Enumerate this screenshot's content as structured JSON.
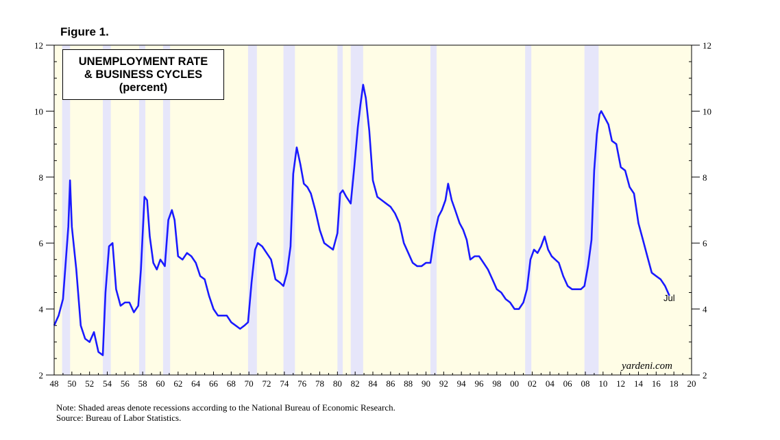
{
  "figure_label": "Figure 1.",
  "watermark": "yardeni.com",
  "notes": {
    "line1": "Note: Shaded areas denote recessions according to the National Bureau of Economic Research.",
    "line2": "Source: Bureau of Labor Statistics."
  },
  "colors": {
    "line": "#1a1aff",
    "background": "#fffde6",
    "recession": "#e6e6fa"
  },
  "chart_data": {
    "type": "line",
    "title": "UNEMPLOYMENT RATE & BUSINESS CYCLES (percent)",
    "title_lines": [
      "UNEMPLOYMENT RATE",
      "& BUSINESS CYCLES",
      "(percent)"
    ],
    "xlabel": "",
    "ylabel": "",
    "end_label": "Jul",
    "xlim": [
      1948,
      2020
    ],
    "ylim": [
      2,
      12
    ],
    "y_ticks": [
      2,
      4,
      6,
      8,
      10,
      12
    ],
    "x_tick_labels": [
      "48",
      "50",
      "52",
      "54",
      "56",
      "58",
      "60",
      "62",
      "64",
      "66",
      "68",
      "70",
      "72",
      "74",
      "76",
      "78",
      "80",
      "82",
      "84",
      "86",
      "88",
      "90",
      "92",
      "94",
      "96",
      "98",
      "00",
      "02",
      "04",
      "06",
      "08",
      "10",
      "12",
      "14",
      "16",
      "18",
      "20"
    ],
    "recessions": [
      [
        1948.9,
        1949.8
      ],
      [
        1953.5,
        1954.4
      ],
      [
        1957.6,
        1958.3
      ],
      [
        1960.3,
        1961.1
      ],
      [
        1969.9,
        1970.9
      ],
      [
        1973.9,
        1975.2
      ],
      [
        1980.0,
        1980.6
      ],
      [
        1981.5,
        1982.9
      ],
      [
        1990.5,
        1991.2
      ],
      [
        2001.2,
        2001.9
      ],
      [
        2007.9,
        2009.5
      ]
    ],
    "series": [
      {
        "name": "Unemployment Rate",
        "x": [
          1948.0,
          1948.5,
          1949.0,
          1949.3,
          1949.6,
          1949.8,
          1950.0,
          1950.5,
          1951.0,
          1951.5,
          1952.0,
          1952.5,
          1953.0,
          1953.5,
          1953.8,
          1954.2,
          1954.6,
          1955.0,
          1955.5,
          1956.0,
          1956.5,
          1957.0,
          1957.5,
          1957.8,
          1958.2,
          1958.5,
          1958.8,
          1959.2,
          1959.6,
          1960.0,
          1960.5,
          1960.9,
          1961.3,
          1961.6,
          1962.0,
          1962.5,
          1963.0,
          1963.5,
          1964.0,
          1964.5,
          1965.0,
          1965.5,
          1966.0,
          1966.5,
          1967.0,
          1967.5,
          1968.0,
          1968.5,
          1969.0,
          1969.5,
          1969.9,
          1970.3,
          1970.7,
          1971.0,
          1971.5,
          1972.0,
          1972.5,
          1973.0,
          1973.5,
          1973.9,
          1974.3,
          1974.7,
          1975.0,
          1975.4,
          1975.8,
          1976.2,
          1976.6,
          1977.0,
          1977.5,
          1978.0,
          1978.5,
          1979.0,
          1979.5,
          1980.0,
          1980.3,
          1980.6,
          1981.0,
          1981.5,
          1981.9,
          1982.3,
          1982.6,
          1982.9,
          1983.2,
          1983.6,
          1984.0,
          1984.5,
          1985.0,
          1985.5,
          1986.0,
          1986.5,
          1987.0,
          1987.5,
          1988.0,
          1988.5,
          1989.0,
          1989.5,
          1990.0,
          1990.5,
          1991.0,
          1991.4,
          1991.8,
          1992.2,
          1992.5,
          1992.9,
          1993.3,
          1993.8,
          1994.2,
          1994.6,
          1995.0,
          1995.5,
          1996.0,
          1996.5,
          1997.0,
          1997.5,
          1998.0,
          1998.5,
          1999.0,
          1999.5,
          2000.0,
          2000.5,
          2001.0,
          2001.4,
          2001.8,
          2002.2,
          2002.6,
          2003.0,
          2003.4,
          2003.8,
          2004.2,
          2004.6,
          2005.0,
          2005.5,
          2006.0,
          2006.5,
          2007.0,
          2007.5,
          2007.9,
          2008.3,
          2008.7,
          2009.0,
          2009.3,
          2009.6,
          2009.8,
          2010.2,
          2010.6,
          2011.0,
          2011.5,
          2012.0,
          2012.5,
          2013.0,
          2013.5,
          2014.0,
          2014.5,
          2015.0,
          2015.5,
          2016.0,
          2016.5,
          2017.0,
          2017.5
        ],
        "values": [
          3.5,
          3.8,
          4.3,
          5.4,
          6.5,
          7.9,
          6.5,
          5.2,
          3.5,
          3.1,
          3.0,
          3.3,
          2.7,
          2.6,
          4.5,
          5.9,
          6.0,
          4.6,
          4.1,
          4.2,
          4.2,
          3.9,
          4.1,
          5.2,
          7.4,
          7.3,
          6.2,
          5.4,
          5.2,
          5.5,
          5.3,
          6.7,
          7.0,
          6.7,
          5.6,
          5.5,
          5.7,
          5.6,
          5.4,
          5.0,
          4.9,
          4.4,
          4.0,
          3.8,
          3.8,
          3.8,
          3.6,
          3.5,
          3.4,
          3.5,
          3.6,
          4.8,
          5.8,
          6.0,
          5.9,
          5.7,
          5.5,
          4.9,
          4.8,
          4.7,
          5.1,
          5.9,
          8.1,
          8.9,
          8.4,
          7.8,
          7.7,
          7.5,
          7.0,
          6.4,
          6.0,
          5.9,
          5.8,
          6.3,
          7.5,
          7.6,
          7.4,
          7.2,
          8.3,
          9.5,
          10.2,
          10.8,
          10.4,
          9.4,
          7.9,
          7.4,
          7.3,
          7.2,
          7.1,
          6.9,
          6.6,
          6.0,
          5.7,
          5.4,
          5.3,
          5.3,
          5.4,
          5.4,
          6.3,
          6.8,
          7.0,
          7.3,
          7.8,
          7.3,
          7.0,
          6.6,
          6.4,
          6.1,
          5.5,
          5.6,
          5.6,
          5.4,
          5.2,
          4.9,
          4.6,
          4.5,
          4.3,
          4.2,
          4.0,
          4.0,
          4.2,
          4.6,
          5.5,
          5.8,
          5.7,
          5.9,
          6.2,
          5.8,
          5.6,
          5.5,
          5.4,
          5.0,
          4.7,
          4.6,
          4.6,
          4.6,
          4.7,
          5.3,
          6.1,
          8.2,
          9.3,
          9.9,
          10.0,
          9.8,
          9.6,
          9.1,
          9.0,
          8.3,
          8.2,
          7.7,
          7.5,
          6.6,
          6.1,
          5.6,
          5.1,
          5.0,
          4.9,
          4.7,
          4.4
        ]
      }
    ]
  }
}
